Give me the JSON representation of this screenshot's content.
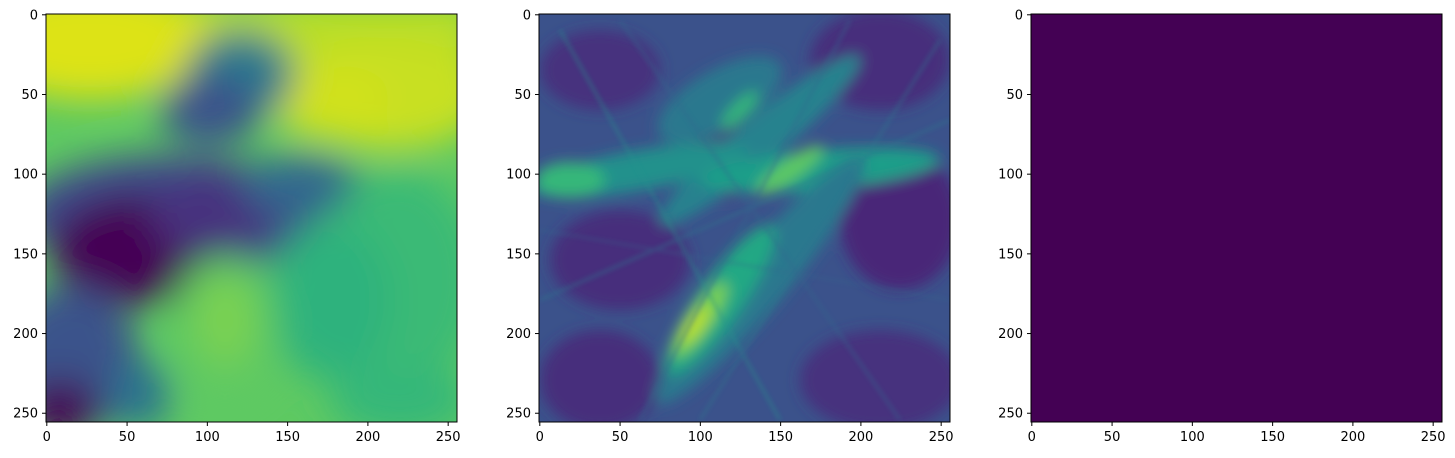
{
  "chart_data": [
    {
      "type": "heatmap",
      "description": "smooth field",
      "xlim": [
        0,
        255
      ],
      "ylim": [
        255,
        0
      ],
      "x_ticks": [
        0,
        50,
        100,
        150,
        200,
        250
      ],
      "y_ticks": [
        0,
        50,
        100,
        150,
        200,
        250
      ],
      "colormap": "viridis"
    },
    {
      "type": "heatmap",
      "description": "streaky field",
      "xlim": [
        0,
        255
      ],
      "ylim": [
        255,
        0
      ],
      "x_ticks": [
        0,
        50,
        100,
        150,
        200,
        250
      ],
      "y_ticks": [
        0,
        50,
        100,
        150,
        200,
        250
      ],
      "colormap": "viridis"
    },
    {
      "type": "heatmap",
      "description": "uniform field",
      "xlim": [
        0,
        255
      ],
      "ylim": [
        255,
        0
      ],
      "x_ticks": [
        0,
        50,
        100,
        150,
        200,
        250
      ],
      "y_ticks": [
        0,
        50,
        100,
        150,
        200,
        250
      ],
      "colormap": "viridis",
      "uniform_value_color": "#440154"
    }
  ],
  "colors": {
    "viridis_low": "#440154",
    "viridis_mid": "#21918c",
    "viridis_high": "#fde725",
    "axis": "#000000",
    "background": "#ffffff"
  }
}
